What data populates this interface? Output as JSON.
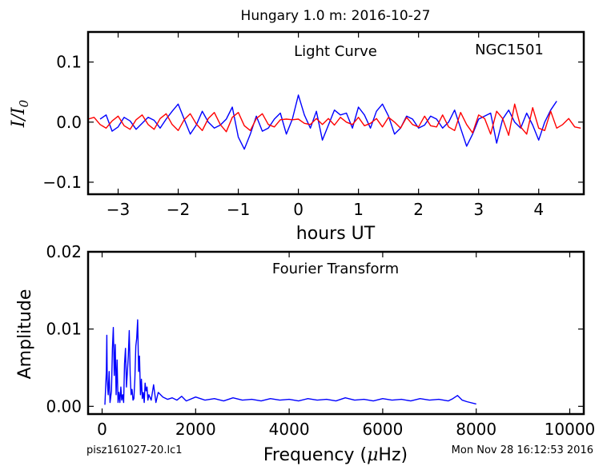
{
  "figure": {
    "title": "Hungary 1.0 m:  2016-10-27",
    "filename": "pisz161027-20.lc1",
    "timestamp": "Mon Nov 28 16:12:53 2016",
    "colors": {
      "data": "#0000ff",
      "model": "#ff0000",
      "frame": "#000000"
    }
  },
  "chart_data": [
    {
      "type": "line",
      "panel": "light-curve",
      "title": "Light Curve",
      "annotation": "NGC1501",
      "xlabel": "hours UT",
      "ylabel_math": {
        "base": "I",
        "sep": "/",
        "denom": "I",
        "sub": "0"
      },
      "xlim": [
        -3.5,
        4.75
      ],
      "ylim": [
        -0.12,
        0.15
      ],
      "xticks": [
        -3,
        -2,
        -1,
        0,
        1,
        2,
        3,
        4
      ],
      "xtick_labels": [
        "−3",
        "−2",
        "−1",
        "0",
        "1",
        "2",
        "3",
        "4"
      ],
      "yticks": [
        -0.1,
        0.0,
        0.1
      ],
      "ytick_labels": [
        "−0.1",
        "0.0",
        "0.1"
      ],
      "series": [
        {
          "role": "data",
          "color": "#0000ff",
          "x": [
            -3.3,
            -3.2,
            -3.1,
            -3.0,
            -2.9,
            -2.8,
            -2.7,
            -2.6,
            -2.5,
            -2.4,
            -2.3,
            -2.2,
            -2.1,
            -2.0,
            -1.9,
            -1.8,
            -1.7,
            -1.6,
            -1.5,
            -1.4,
            -1.3,
            -1.2,
            -1.1,
            -1.0,
            -0.9,
            -0.8,
            -0.7,
            -0.6,
            -0.5,
            -0.4,
            -0.3,
            -0.2,
            -0.1,
            0.0,
            0.1,
            0.2,
            0.3,
            0.4,
            0.5,
            0.6,
            0.7,
            0.8,
            0.9,
            1.0,
            1.1,
            1.2,
            1.3,
            1.4,
            1.5,
            1.6,
            1.7,
            1.8,
            1.9,
            2.0,
            2.1,
            2.2,
            2.3,
            2.4,
            2.5,
            2.6,
            2.7,
            2.8,
            2.9,
            3.0,
            3.1,
            3.2,
            3.3,
            3.4,
            3.5,
            3.6,
            3.7,
            3.8,
            3.9,
            4.0,
            4.1,
            4.2,
            4.3
          ],
          "y": [
            0.005,
            0.012,
            -0.015,
            -0.008,
            0.008,
            0.002,
            -0.012,
            -0.002,
            0.008,
            0.003,
            -0.01,
            0.005,
            0.018,
            0.03,
            0.005,
            -0.02,
            -0.005,
            0.018,
            0.0,
            -0.01,
            -0.005,
            0.005,
            0.025,
            -0.025,
            -0.045,
            -0.02,
            0.01,
            -0.015,
            -0.01,
            0.005,
            0.015,
            -0.02,
            0.005,
            0.045,
            0.012,
            -0.01,
            0.018,
            -0.03,
            -0.005,
            0.02,
            0.012,
            0.015,
            -0.01,
            0.025,
            0.012,
            -0.01,
            0.018,
            0.03,
            0.01,
            -0.02,
            -0.01,
            0.01,
            0.005,
            -0.01,
            -0.005,
            0.01,
            0.005,
            -0.01,
            0.0,
            0.02,
            -0.01,
            -0.04,
            -0.02,
            0.005,
            0.01,
            0.015,
            -0.035,
            0.005,
            0.02,
            0.0,
            -0.01,
            0.015,
            -0.005,
            -0.03,
            0.0,
            0.02,
            0.035
          ]
        },
        {
          "role": "model",
          "color": "#ff0000",
          "x": [
            -3.5,
            -3.4,
            -3.3,
            -3.2,
            -3.1,
            -3.0,
            -2.9,
            -2.8,
            -2.7,
            -2.6,
            -2.5,
            -2.4,
            -2.3,
            -2.2,
            -2.1,
            -2.0,
            -1.9,
            -1.8,
            -1.7,
            -1.6,
            -1.5,
            -1.4,
            -1.3,
            -1.2,
            -1.1,
            -1.0,
            -0.9,
            -0.8,
            -0.7,
            -0.6,
            -0.5,
            -0.4,
            -0.3,
            -0.2,
            -0.1,
            0.0,
            0.1,
            0.2,
            0.3,
            0.4,
            0.5,
            0.6,
            0.7,
            0.8,
            0.9,
            1.0,
            1.1,
            1.2,
            1.3,
            1.4,
            1.5,
            1.6,
            1.7,
            1.8,
            1.9,
            2.0,
            2.1,
            2.2,
            2.3,
            2.4,
            2.5,
            2.6,
            2.7,
            2.8,
            2.9,
            3.0,
            3.1,
            3.2,
            3.3,
            3.4,
            3.5,
            3.6,
            3.7,
            3.8,
            3.9,
            4.0,
            4.1,
            4.2,
            4.3,
            4.4,
            4.5,
            4.6,
            4.7
          ],
          "y": [
            0.005,
            0.008,
            -0.004,
            -0.01,
            0.002,
            0.01,
            -0.006,
            -0.012,
            0.004,
            0.012,
            -0.004,
            -0.012,
            0.006,
            0.014,
            -0.004,
            -0.014,
            0.004,
            0.014,
            -0.003,
            -0.014,
            0.006,
            0.016,
            -0.004,
            -0.016,
            0.008,
            0.016,
            -0.006,
            -0.014,
            0.006,
            0.014,
            -0.004,
            -0.008,
            0.004,
            0.005,
            0.004,
            0.005,
            -0.002,
            -0.004,
            0.006,
            -0.004,
            0.006,
            -0.005,
            0.008,
            0.0,
            -0.004,
            0.008,
            -0.006,
            -0.002,
            0.006,
            -0.008,
            0.008,
            0.0,
            -0.01,
            0.008,
            -0.004,
            -0.008,
            0.01,
            -0.006,
            -0.008,
            0.012,
            -0.008,
            -0.014,
            0.016,
            -0.004,
            -0.018,
            0.012,
            0.006,
            -0.02,
            0.018,
            0.006,
            -0.022,
            0.03,
            -0.008,
            -0.02,
            0.024,
            -0.01,
            -0.014,
            0.018,
            -0.01,
            -0.004,
            0.006,
            -0.008,
            -0.01
          ]
        }
      ]
    },
    {
      "type": "line",
      "panel": "fourier-transform",
      "title": "Fourier Transform",
      "xlabel": "Frequency (μHz)",
      "xlabel_parts": {
        "before": "Frequency (",
        "mu": "μ",
        "after": "Hz)"
      },
      "ylabel": "Amplitude",
      "xlim": [
        -300,
        10300
      ],
      "ylim": [
        -0.001,
        0.02
      ],
      "xticks": [
        0,
        2000,
        4000,
        6000,
        8000,
        10000
      ],
      "xtick_labels": [
        "0",
        "2000",
        "4000",
        "6000",
        "8000",
        "10000"
      ],
      "yticks": [
        0.0,
        0.01,
        0.02
      ],
      "ytick_labels": [
        "0.00",
        "0.01",
        "0.02"
      ],
      "series": [
        {
          "role": "data",
          "color": "#0000ff",
          "x": [
            60,
            90,
            100,
            110,
            130,
            150,
            170,
            200,
            220,
            240,
            260,
            280,
            300,
            320,
            340,
            360,
            380,
            400,
            420,
            440,
            460,
            480,
            500,
            520,
            540,
            560,
            580,
            600,
            620,
            640,
            660,
            680,
            700,
            720,
            740,
            760,
            780,
            800,
            820,
            840,
            860,
            880,
            900,
            920,
            940,
            960,
            980,
            1000,
            1050,
            1100,
            1150,
            1200,
            1300,
            1400,
            1500,
            1600,
            1700,
            1800,
            2000,
            2200,
            2400,
            2600,
            2800,
            3000,
            3200,
            3400,
            3600,
            3800,
            4000,
            4200,
            4400,
            4600,
            4800,
            5000,
            5200,
            5400,
            5600,
            5800,
            6000,
            6200,
            6400,
            6600,
            6800,
            7000,
            7200,
            7400,
            7500,
            7600,
            7700,
            7800,
            8000
          ],
          "y": [
            0.0002,
            0.0045,
            0.0092,
            0.0035,
            0.0015,
            0.0045,
            0.0005,
            0.002,
            0.0075,
            0.0102,
            0.004,
            0.008,
            0.0015,
            0.006,
            0.0005,
            0.0018,
            0.0005,
            0.0025,
            0.0008,
            0.0015,
            0.0005,
            0.0055,
            0.0075,
            0.0025,
            0.0045,
            0.0065,
            0.0098,
            0.004,
            0.0015,
            0.0022,
            0.0008,
            0.001,
            0.0035,
            0.0078,
            0.0088,
            0.0112,
            0.0045,
            0.0065,
            0.0015,
            0.0035,
            0.001,
            0.0018,
            0.0005,
            0.003,
            0.002,
            0.0025,
            0.0008,
            0.0015,
            0.0008,
            0.0028,
            0.0005,
            0.0018,
            0.0012,
            0.0009,
            0.0011,
            0.0008,
            0.0013,
            0.0007,
            0.0012,
            0.0008,
            0.001,
            0.0007,
            0.0011,
            0.0008,
            0.0009,
            0.0007,
            0.001,
            0.0008,
            0.0009,
            0.0007,
            0.001,
            0.0008,
            0.0009,
            0.0007,
            0.0011,
            0.0008,
            0.0009,
            0.0007,
            0.001,
            0.0008,
            0.0009,
            0.0007,
            0.001,
            0.0008,
            0.0009,
            0.0007,
            0.001,
            0.0014,
            0.0008,
            0.0006,
            0.0003
          ]
        }
      ]
    }
  ]
}
